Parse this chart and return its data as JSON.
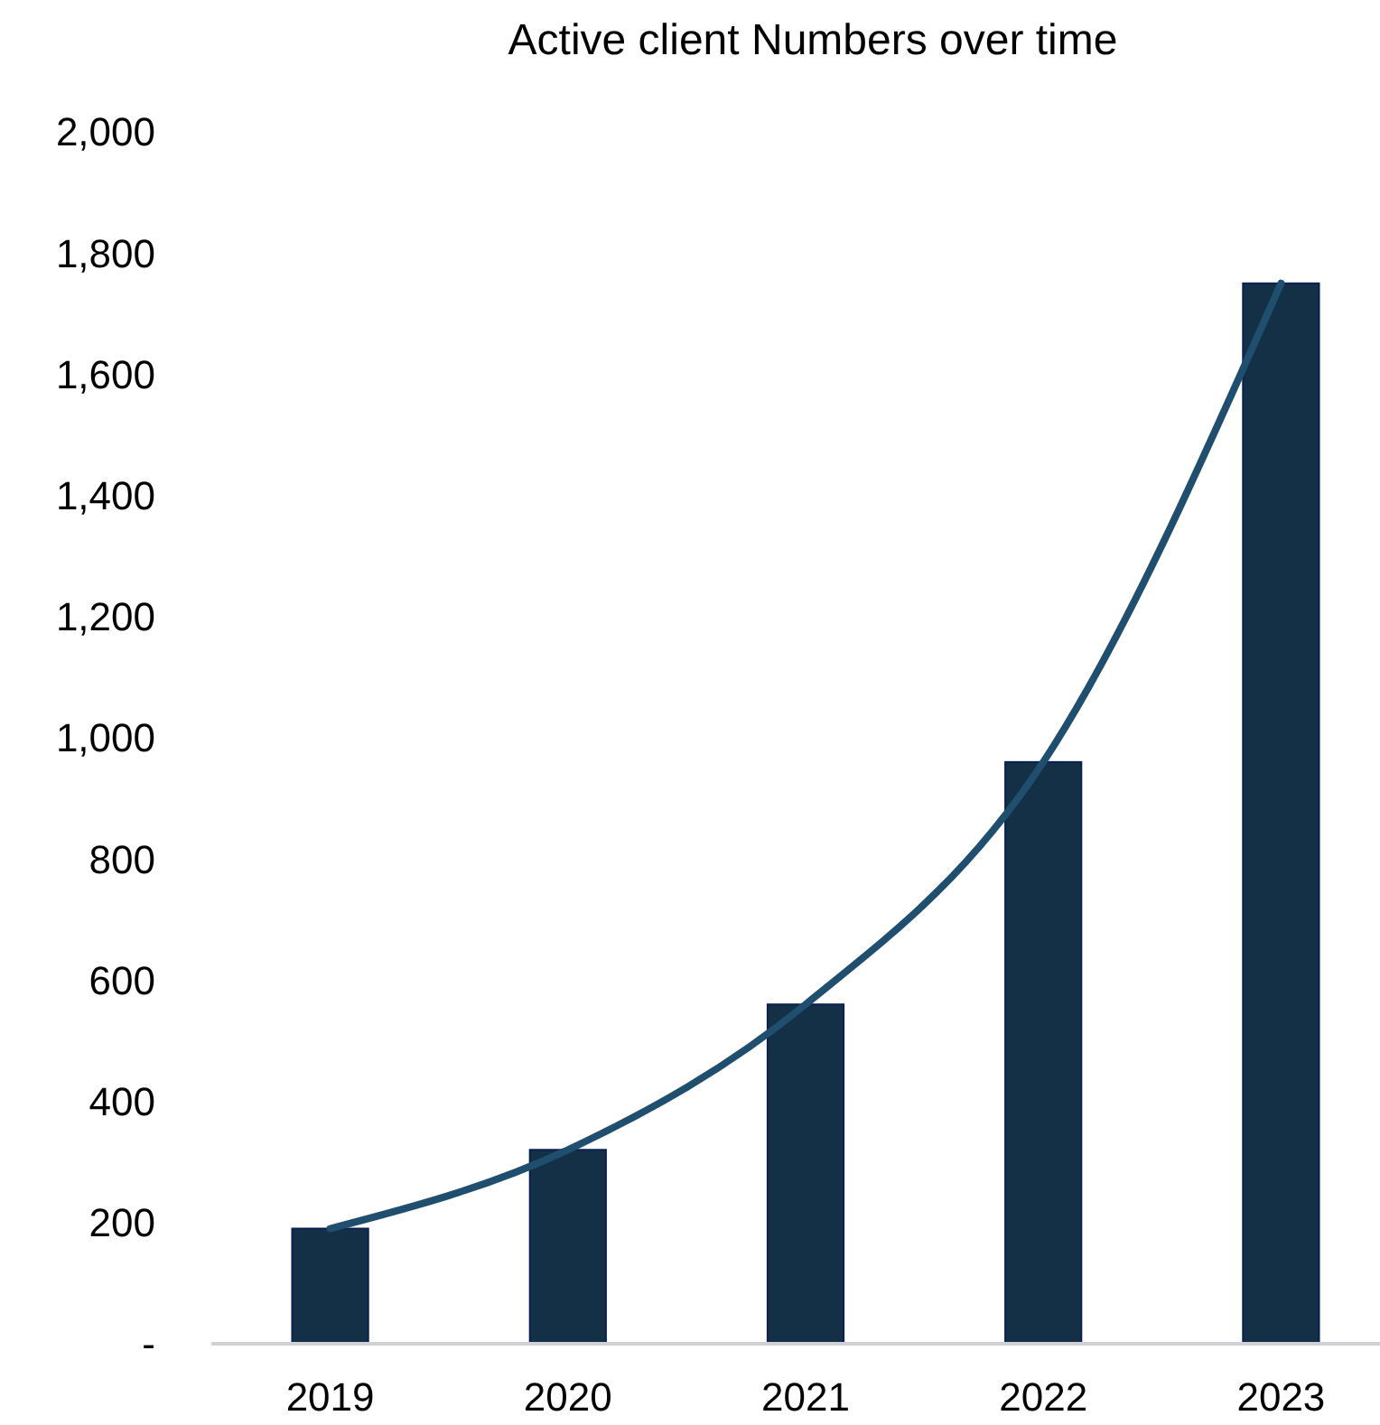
{
  "chart_data": {
    "type": "bar",
    "title": "Active client Numbers over time",
    "categories": [
      "2019",
      "2020",
      "2021",
      "2022",
      "2023"
    ],
    "series": [
      {
        "color": "#133047",
        "values": [
          190,
          320,
          560,
          960,
          1750
        ]
      },
      {
        "type": "line",
        "color": "#1f4e6e",
        "values": [
          190,
          320,
          560,
          960,
          1750
        ]
      }
    ],
    "ylim": [
      0,
      2000
    ],
    "yticks": [
      {
        "value": 0,
        "label": "-"
      },
      200,
      400,
      600,
      800,
      {
        "value": 1000,
        "label": "1,000"
      },
      {
        "value": 1200,
        "label": "1,200"
      },
      {
        "value": 1400,
        "label": "1,400"
      },
      {
        "value": 1600,
        "label": "1,600"
      },
      {
        "value": 1800,
        "label": "1,800"
      },
      {
        "value": 2000,
        "label": "2,000"
      }
    ],
    "grid": false,
    "marker": "none",
    "line_style": "solid"
  }
}
